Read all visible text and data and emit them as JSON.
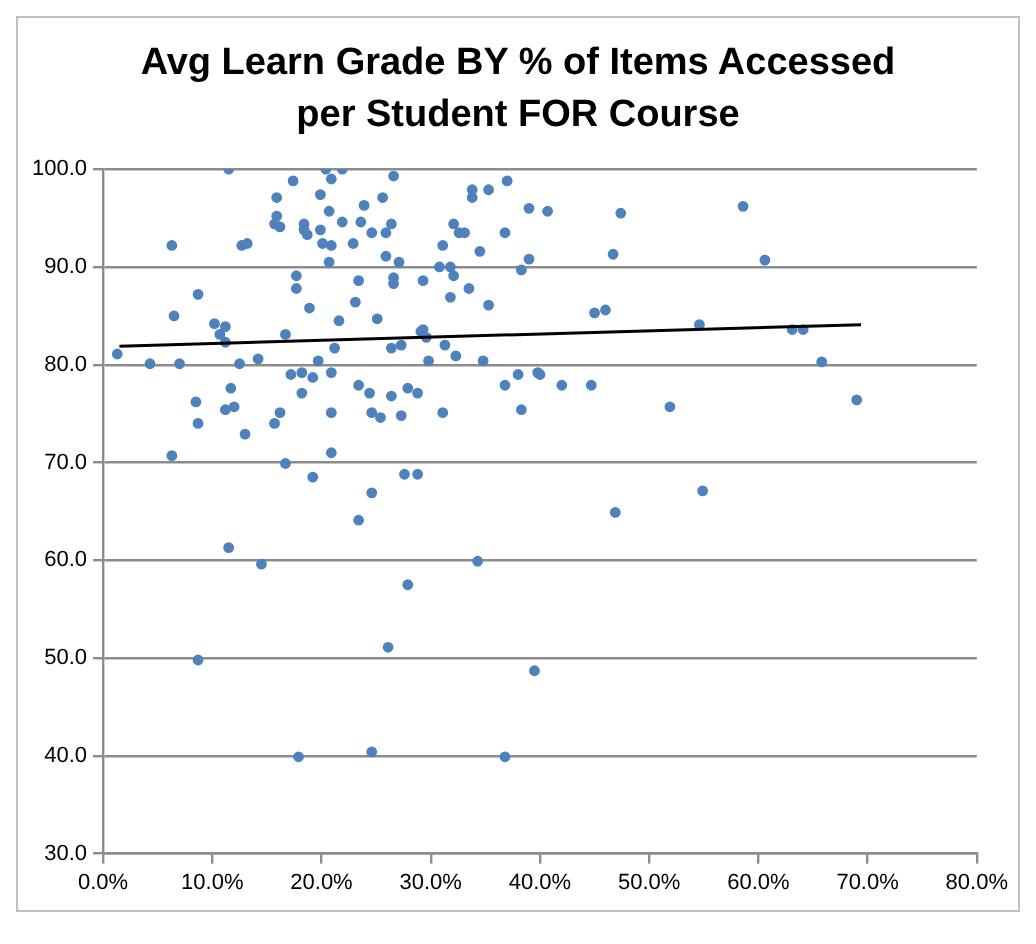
{
  "chart_data": {
    "type": "scatter",
    "title": "Avg Learn Grade BY % of Items Accessed per Student FOR Course",
    "xlim": [
      0,
      80
    ],
    "xticks": [
      {
        "value": 0,
        "label": "0.0%"
      },
      {
        "value": 10,
        "label": "10.0%"
      },
      {
        "value": 20,
        "label": "20.0%"
      },
      {
        "value": 30,
        "label": "30.0%"
      },
      {
        "value": 40,
        "label": "40.0%"
      },
      {
        "value": 50,
        "label": "50.0%"
      },
      {
        "value": 60,
        "label": "60.0%"
      },
      {
        "value": 70,
        "label": "70.0%"
      },
      {
        "value": 80,
        "label": "80.0%"
      }
    ],
    "ylim": [
      30,
      100
    ],
    "yticks": [
      {
        "value": 30,
        "label": "30.0"
      },
      {
        "value": 40,
        "label": "40.0"
      },
      {
        "value": 50,
        "label": "50.0"
      },
      {
        "value": 60,
        "label": "60.0"
      },
      {
        "value": 70,
        "label": "70.0"
      },
      {
        "value": 80,
        "label": "80.0"
      },
      {
        "value": 90,
        "label": "90.0"
      },
      {
        "value": 100,
        "label": "100.0"
      }
    ],
    "grid": "y",
    "legend": false,
    "series": [
      {
        "marker": "circle",
        "color": "#4f81bd",
        "x": [
          1.3,
          4.3,
          7.0,
          6.3,
          6.5,
          6.3,
          8.7,
          8.5,
          8.7,
          10.2,
          11.2,
          10.7,
          11.2,
          11.5,
          11.7,
          11.2,
          12.0,
          12.5,
          13.0,
          12.7,
          13.2,
          14.2,
          15.7,
          16.2,
          16.7,
          16.7,
          15.9,
          15.9,
          16.2,
          15.7,
          17.4,
          17.2,
          17.7,
          17.7,
          18.2,
          18.2,
          18.4,
          18.4,
          18.7,
          18.9,
          19.2,
          19.2,
          19.7,
          19.9,
          19.9,
          20.1,
          20.9,
          20.4,
          20.9,
          20.7,
          20.7,
          20.9,
          20.9,
          20.9,
          21.2,
          21.6,
          21.9,
          21.9,
          22.9,
          23.1,
          23.4,
          23.4,
          23.6,
          23.9,
          24.4,
          24.6,
          24.6,
          25.4,
          24.6,
          25.1,
          25.6,
          26.6,
          26.4,
          25.9,
          25.9,
          27.1,
          26.6,
          26.6,
          29.3,
          29.1,
          29.3,
          29.6,
          26.4,
          27.3,
          29.8,
          31.3,
          32.3,
          34.8,
          26.4,
          27.9,
          28.8,
          27.3,
          31.1,
          27.6,
          28.8,
          31.1,
          30.8,
          31.8,
          32.1,
          31.8,
          33.5,
          35.3,
          32.1,
          32.6,
          33.1,
          33.8,
          33.8,
          35.3,
          37.0,
          36.8,
          34.5,
          39.0,
          40.7,
          39.0,
          38.3,
          47.4,
          46.7,
          45.0,
          46.0,
          36.8,
          38.0,
          39.8,
          40.0,
          42.0,
          44.7,
          38.3,
          51.9,
          58.6,
          60.6,
          54.6,
          63.1,
          64.1,
          65.8,
          69.0,
          54.9,
          23.4,
          11.5,
          14.5,
          34.3,
          27.9,
          26.1,
          8.7,
          39.5,
          17.9,
          24.6,
          36.8,
          46.9
        ],
        "values": [
          81.1,
          80.1,
          80.1,
          92.2,
          85.0,
          70.7,
          87.2,
          76.2,
          74.0,
          84.2,
          83.9,
          83.1,
          82.3,
          100.0,
          77.6,
          75.4,
          75.7,
          80.1,
          72.9,
          92.2,
          92.4,
          80.6,
          74.0,
          75.1,
          69.9,
          83.1,
          97.1,
          95.2,
          94.1,
          94.4,
          98.8,
          79.0,
          89.1,
          87.8,
          79.2,
          77.1,
          94.4,
          93.8,
          93.3,
          85.8,
          78.7,
          68.5,
          80.4,
          97.4,
          93.8,
          92.4,
          92.2,
          100.0,
          99.0,
          95.7,
          90.5,
          79.2,
          75.1,
          71.0,
          81.7,
          84.5,
          100.0,
          94.6,
          92.4,
          86.4,
          88.6,
          77.9,
          94.6,
          96.3,
          77.1,
          93.5,
          75.1,
          74.6,
          66.9,
          84.7,
          97.1,
          99.3,
          94.4,
          93.5,
          91.1,
          90.5,
          88.9,
          88.3,
          88.6,
          83.4,
          83.6,
          82.8,
          81.7,
          82.0,
          80.4,
          82.0,
          80.9,
          80.4,
          76.8,
          77.6,
          77.1,
          74.8,
          75.1,
          68.8,
          68.8,
          92.2,
          90.0,
          90.0,
          89.1,
          86.9,
          87.8,
          86.1,
          94.4,
          93.5,
          93.5,
          97.9,
          97.1,
          97.9,
          98.8,
          93.5,
          91.6,
          96.0,
          95.7,
          90.8,
          89.7,
          95.5,
          91.3,
          85.3,
          85.6,
          77.9,
          79.0,
          79.2,
          79.0,
          77.9,
          77.9,
          75.4,
          75.7,
          96.2,
          90.7,
          84.1,
          83.6,
          83.6,
          80.3,
          76.4,
          67.1,
          64.1,
          61.3,
          59.6,
          59.9,
          57.5,
          51.1,
          49.8,
          48.7,
          39.9,
          40.4,
          39.9,
          64.9
        ]
      },
      {
        "type": "line",
        "marker": "none",
        "color": "#000000",
        "x": [
          1.5,
          69.4
        ],
        "values": [
          81.9,
          84.1
        ]
      }
    ]
  }
}
